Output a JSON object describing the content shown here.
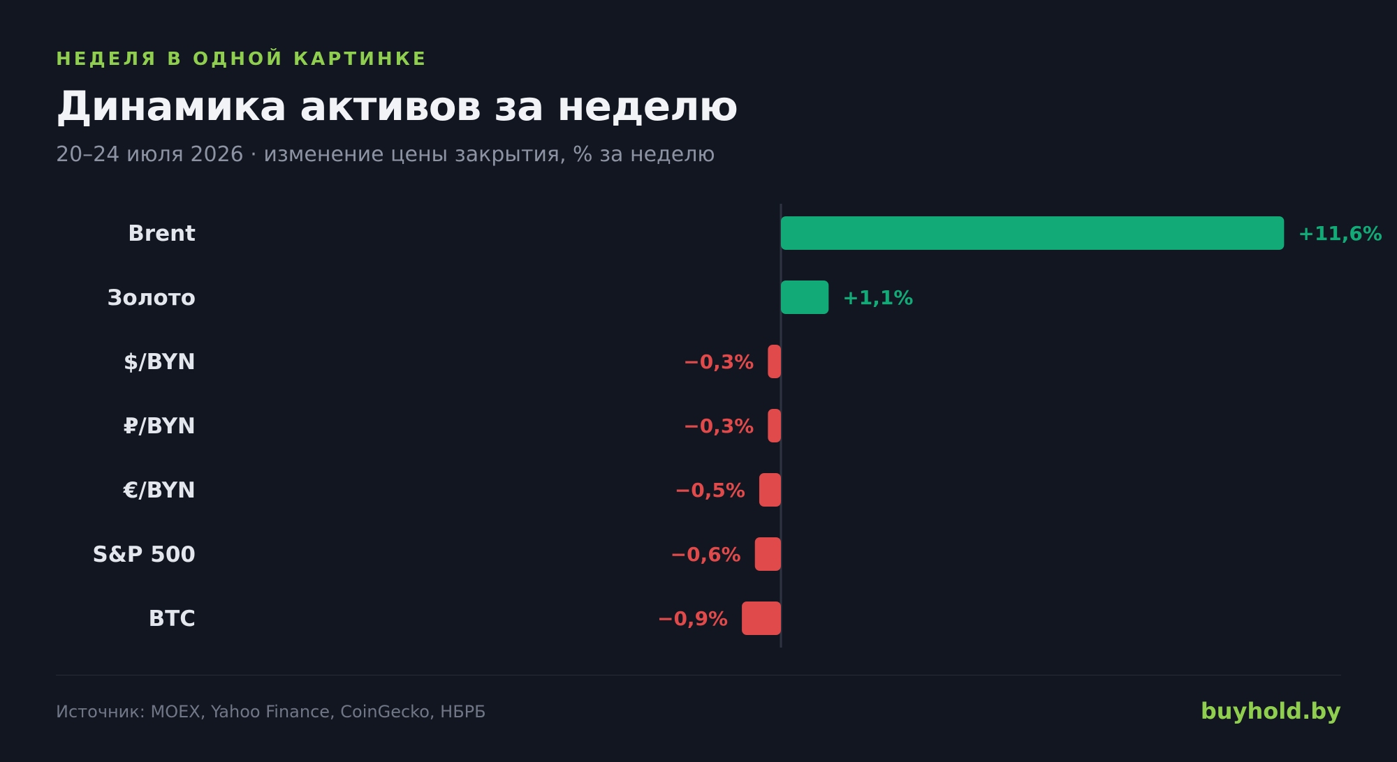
{
  "header": {
    "kicker": "НЕДЕЛЯ В ОДНОЙ КАРТИНКЕ",
    "title": "Динамика активов за неделю",
    "subtitle": "20–24 июля 2026 · изменение цены закрытия, % за неделю"
  },
  "footer": {
    "source": "Источник: MOEX, Yahoo Finance, CoinGecko, НБРБ",
    "brand": "buyhold.by"
  },
  "colors": {
    "positive": "#12ab78",
    "negative": "#e04a4a",
    "axis": "#2e3442",
    "label": "#e3e6ec"
  },
  "chart_data": {
    "type": "bar",
    "orientation": "horizontal",
    "categories": [
      "Brent",
      "Золото",
      "$/BYN",
      "₽/BYN",
      "€/BYN",
      "S&P 500",
      "BTC"
    ],
    "values": [
      11.6,
      1.1,
      -0.3,
      -0.3,
      -0.5,
      -0.6,
      -0.9
    ],
    "value_labels": [
      "+11,6%",
      "+1,1%",
      "−0,3%",
      "−0,3%",
      "−0,5%",
      "−0,6%",
      "−0,9%"
    ],
    "unit": "%",
    "grid": false
  }
}
